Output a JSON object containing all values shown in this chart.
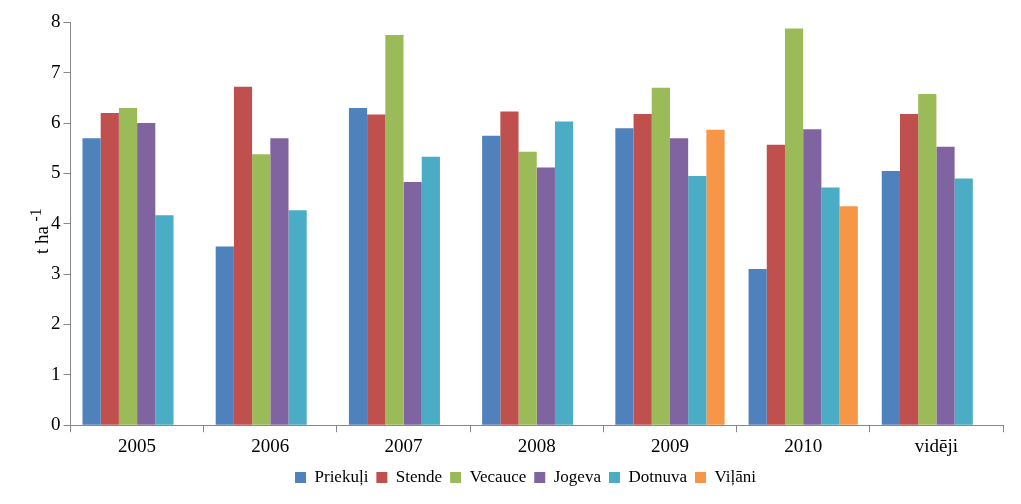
{
  "chart_data": {
    "type": "bar",
    "ylabel": "t ha $^{-1}$",
    "categories": [
      "2005",
      "2006",
      "2007",
      "2008",
      "2009",
      "2010",
      "vidēji"
    ],
    "series": [
      {
        "name": "Priekuļi",
        "color": "#4f81bd",
        "values": [
          5.7,
          3.55,
          6.3,
          5.75,
          5.9,
          3.1,
          5.05
        ]
      },
      {
        "name": "Stende",
        "color": "#c0504d",
        "values": [
          6.2,
          6.72,
          6.17,
          6.23,
          6.18,
          5.57,
          6.18
        ]
      },
      {
        "name": "Vecauce",
        "color": "#9bbb59",
        "values": [
          6.3,
          5.38,
          7.75,
          5.43,
          6.7,
          7.88,
          6.58
        ]
      },
      {
        "name": "Jogeva",
        "color": "#8064a2",
        "values": [
          6.0,
          5.7,
          4.83,
          5.12,
          5.7,
          5.88,
          5.53
        ]
      },
      {
        "name": "Dotnuva",
        "color": "#4bacc6",
        "values": [
          4.17,
          4.27,
          5.33,
          6.03,
          4.95,
          4.72,
          4.9
        ]
      },
      {
        "name": "Viļāni",
        "color": "#f79646",
        "values": [
          null,
          null,
          null,
          null,
          5.87,
          4.35,
          null
        ]
      }
    ],
    "ylim": [
      0,
      8
    ],
    "yticks": [
      0,
      1,
      2,
      3,
      4,
      5,
      6,
      7,
      8
    ],
    "grid": false,
    "legend": "bottom"
  }
}
